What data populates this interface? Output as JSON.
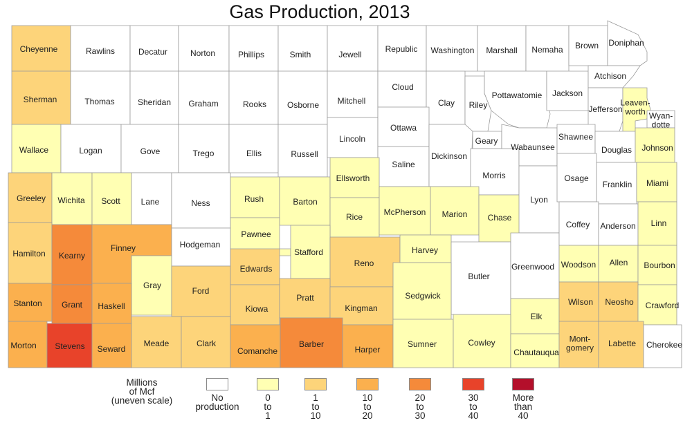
{
  "title": "Gas Production, 2013",
  "legend": {
    "title_lines": [
      "Millions",
      "of Mcf",
      "(uneven scale)"
    ],
    "classes": [
      {
        "lines": [
          "No",
          "production"
        ],
        "color": "#ffffff"
      },
      {
        "lines": [
          "0",
          "to",
          "1"
        ],
        "color": "#ffffb3"
      },
      {
        "lines": [
          "1",
          "to",
          "10"
        ],
        "color": "#fdd47a"
      },
      {
        "lines": [
          "10",
          "to",
          "20"
        ],
        "color": "#fbb04e"
      },
      {
        "lines": [
          "20",
          "to",
          "30"
        ],
        "color": "#f58a3a"
      },
      {
        "lines": [
          "30",
          "to",
          "40"
        ],
        "color": "#e8432a"
      },
      {
        "lines": [
          "More",
          "than",
          "40"
        ],
        "color": "#b40f2b"
      }
    ]
  },
  "counties": [
    {
      "name": "Cheyenne",
      "class": 2
    },
    {
      "name": "Rawlins",
      "class": 0
    },
    {
      "name": "Decatur",
      "class": 0
    },
    {
      "name": "Norton",
      "class": 0
    },
    {
      "name": "Phillips",
      "class": 0
    },
    {
      "name": "Smith",
      "class": 0
    },
    {
      "name": "Jewell",
      "class": 0
    },
    {
      "name": "Republic",
      "class": 0
    },
    {
      "name": "Washington",
      "class": 0
    },
    {
      "name": "Marshall",
      "class": 0
    },
    {
      "name": "Nemaha",
      "class": 0
    },
    {
      "name": "Brown",
      "class": 0
    },
    {
      "name": "Doniphan",
      "class": 0
    },
    {
      "name": "Sherman",
      "class": 2
    },
    {
      "name": "Thomas",
      "class": 0
    },
    {
      "name": "Sheridan",
      "class": 0
    },
    {
      "name": "Graham",
      "class": 0
    },
    {
      "name": "Rooks",
      "class": 0
    },
    {
      "name": "Osborne",
      "class": 0
    },
    {
      "name": "Mitchell",
      "class": 0
    },
    {
      "name": "Cloud",
      "class": 0
    },
    {
      "name": "Clay",
      "class": 0
    },
    {
      "name": "Riley",
      "class": 0
    },
    {
      "name": "Pottawatomie",
      "class": 0
    },
    {
      "name": "Jackson",
      "class": 0
    },
    {
      "name": "Atchison",
      "class": 0
    },
    {
      "name": "Jefferson",
      "class": 0
    },
    {
      "name": "Leavenworth",
      "label_lines": [
        "Leaven-",
        "worth"
      ],
      "class": 1
    },
    {
      "name": "Wyandotte",
      "label_lines": [
        "Wyan-",
        "dotte"
      ],
      "class": 0
    },
    {
      "name": "Wallace",
      "class": 1
    },
    {
      "name": "Logan",
      "class": 0
    },
    {
      "name": "Gove",
      "class": 0
    },
    {
      "name": "Trego",
      "class": 0
    },
    {
      "name": "Ellis",
      "class": 0
    },
    {
      "name": "Russell",
      "class": 0
    },
    {
      "name": "Lincoln",
      "class": 0
    },
    {
      "name": "Ottawa",
      "class": 0
    },
    {
      "name": "Saline",
      "class": 0
    },
    {
      "name": "Dickinson",
      "class": 0
    },
    {
      "name": "Geary",
      "class": 0
    },
    {
      "name": "Morris",
      "class": 0
    },
    {
      "name": "Wabaunsee",
      "class": 0
    },
    {
      "name": "Shawnee",
      "class": 0
    },
    {
      "name": "Douglas",
      "class": 0
    },
    {
      "name": "Johnson",
      "class": 1
    },
    {
      "name": "Greeley",
      "class": 2
    },
    {
      "name": "Wichita",
      "class": 1
    },
    {
      "name": "Scott",
      "class": 1
    },
    {
      "name": "Lane",
      "class": 0
    },
    {
      "name": "Ness",
      "class": 0
    },
    {
      "name": "Rush",
      "class": 1
    },
    {
      "name": "Barton",
      "class": 1
    },
    {
      "name": "Ellsworth",
      "class": 1
    },
    {
      "name": "Rice",
      "class": 1
    },
    {
      "name": "McPherson",
      "class": 1
    },
    {
      "name": "Marion",
      "class": 1
    },
    {
      "name": "Chase",
      "class": 1
    },
    {
      "name": "Lyon",
      "class": 0
    },
    {
      "name": "Osage",
      "class": 0
    },
    {
      "name": "Franklin",
      "class": 0
    },
    {
      "name": "Miami",
      "class": 1
    },
    {
      "name": "Hamilton",
      "class": 2
    },
    {
      "name": "Kearny",
      "class": 4
    },
    {
      "name": "Finney",
      "class": 3
    },
    {
      "name": "Hodgeman",
      "class": 0
    },
    {
      "name": "Pawnee",
      "class": 1
    },
    {
      "name": "Stafford",
      "class": 1
    },
    {
      "name": "Reno",
      "class": 2
    },
    {
      "name": "Harvey",
      "class": 1
    },
    {
      "name": "Butler",
      "class": 0
    },
    {
      "name": "Greenwood",
      "class": 0
    },
    {
      "name": "Coffey",
      "class": 0
    },
    {
      "name": "Anderson",
      "class": 0
    },
    {
      "name": "Linn",
      "class": 1
    },
    {
      "name": "Gray",
      "class": 1
    },
    {
      "name": "Ford",
      "class": 2
    },
    {
      "name": "Edwards",
      "class": 2
    },
    {
      "name": "Woodson",
      "class": 1
    },
    {
      "name": "Allen",
      "class": 1
    },
    {
      "name": "Bourbon",
      "class": 1
    },
    {
      "name": "Stanton",
      "class": 3
    },
    {
      "name": "Grant",
      "class": 4
    },
    {
      "name": "Haskell",
      "class": 3
    },
    {
      "name": "Kiowa",
      "class": 2
    },
    {
      "name": "Pratt",
      "class": 2
    },
    {
      "name": "Kingman",
      "class": 2
    },
    {
      "name": "Sedgwick",
      "class": 1
    },
    {
      "name": "Elk",
      "class": 1
    },
    {
      "name": "Wilson",
      "class": 2
    },
    {
      "name": "Neosho",
      "class": 2
    },
    {
      "name": "Crawford",
      "class": 1
    },
    {
      "name": "Morton",
      "class": 3
    },
    {
      "name": "Stevens",
      "class": 5
    },
    {
      "name": "Seward",
      "class": 3
    },
    {
      "name": "Meade",
      "class": 2
    },
    {
      "name": "Clark",
      "class": 2
    },
    {
      "name": "Comanche",
      "class": 3
    },
    {
      "name": "Barber",
      "class": 4
    },
    {
      "name": "Harper",
      "class": 3
    },
    {
      "name": "Sumner",
      "class": 1
    },
    {
      "name": "Cowley",
      "class": 1
    },
    {
      "name": "Chautauqua",
      "class": 1
    },
    {
      "name": "Montgomery",
      "label_lines": [
        "Mont-",
        "gomery"
      ],
      "class": 2
    },
    {
      "name": "Labette",
      "class": 2
    },
    {
      "name": "Cherokee",
      "class": 0
    }
  ]
}
